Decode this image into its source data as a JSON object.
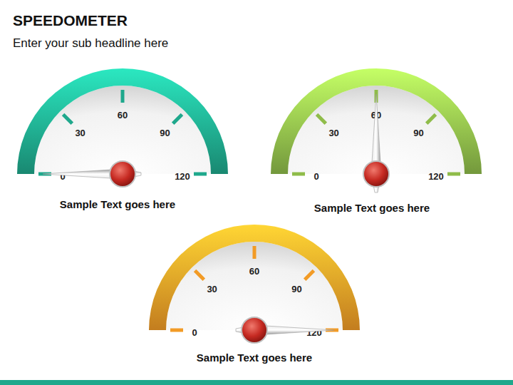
{
  "header": {
    "title": "SPEEDOMETER",
    "subtitle": "Enter your sub headline here"
  },
  "chart_data": [
    {
      "type": "gauge",
      "title": "Sample Text goes here",
      "value": 0,
      "ylim": [
        0,
        120
      ],
      "yticks": [
        0,
        30,
        60,
        90,
        120
      ],
      "color": "#1fa88c"
    },
    {
      "type": "gauge",
      "title": "Sample Text goes here",
      "value": 60,
      "ylim": [
        0,
        120
      ],
      "yticks": [
        0,
        30,
        60,
        90,
        120
      ],
      "color": "#8fbc4a"
    },
    {
      "type": "gauge",
      "title": "Sample Text goes here",
      "value": 120,
      "ylim": [
        0,
        120
      ],
      "yticks": [
        0,
        30,
        60,
        90,
        120
      ],
      "color": "#f29b26"
    }
  ]
}
